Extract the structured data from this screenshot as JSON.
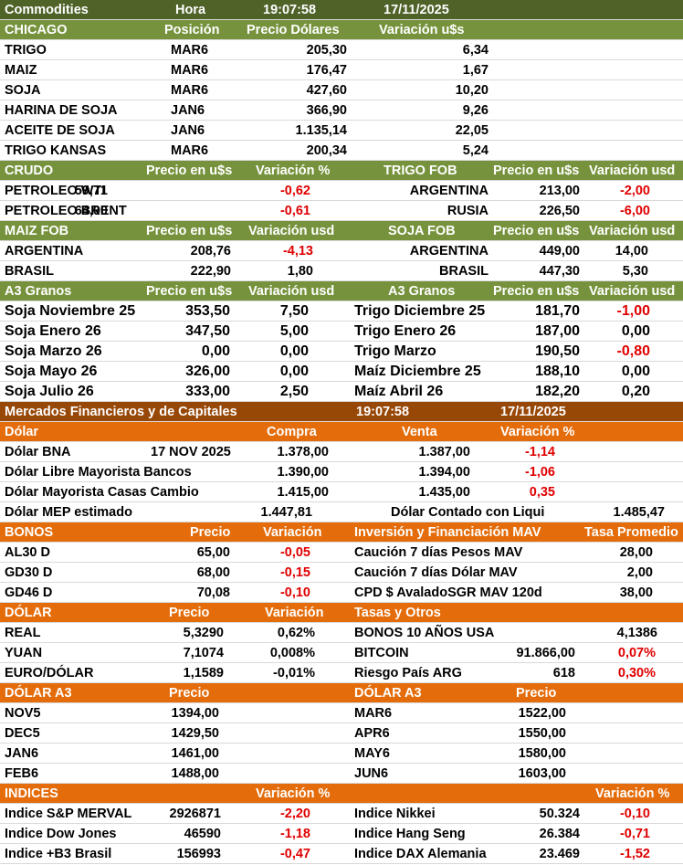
{
  "rows": [
    [
      "Commodities",
      "Hora",
      "19:07:58",
      "17/11/2025"
    ],
    [
      "CHICAGO",
      "Posición",
      "Precio Dólares",
      "Variación u$s"
    ],
    [
      "TRIGO",
      "MAR6",
      "205,30",
      "6,34"
    ],
    [
      "MAIZ",
      "MAR6",
      "176,47",
      "1,67"
    ],
    [
      "SOJA",
      "MAR6",
      "427,60",
      "10,20"
    ],
    [
      "HARINA DE SOJA",
      "JAN6",
      "366,90",
      "9,26"
    ],
    [
      "ACEITE DE SOJA",
      "JAN6",
      "1.135,14",
      "22,05"
    ],
    [
      "TRIGO KANSAS",
      "MAR6",
      "200,34",
      "5,24"
    ],
    [
      "CRUDO",
      "Precio en u$s",
      "Variación %",
      "TRIGO FOB",
      "Precio en u$s",
      "Variación usd"
    ],
    [
      "PETROLEO WTI",
      "59,71",
      "-0,62",
      "ARGENTINA",
      "213,00",
      "-2,00"
    ],
    [
      "PETROLEO BRENT",
      "64,00",
      "-0,61",
      "RUSIA",
      "226,50",
      "-6,00"
    ],
    [
      "MAIZ FOB",
      "Precio en u$s",
      "Variación usd",
      "SOJA FOB",
      "Precio en u$s",
      "Variación usd"
    ],
    [
      "ARGENTINA",
      "208,76",
      "-4,13",
      "ARGENTINA",
      "449,00",
      "14,00"
    ],
    [
      "BRASIL",
      "222,90",
      "1,80",
      "BRASIL",
      "447,30",
      "5,30"
    ],
    [
      "A3 Granos",
      "Precio en u$s",
      "Variación usd",
      "A3 Granos",
      "Precio en u$s",
      "Variación usd"
    ],
    [
      "Soja Noviembre 25",
      "353,50",
      "7,50",
      "Trigo Diciembre 25",
      "181,70",
      "-1,00"
    ],
    [
      "Soja Enero 26",
      "347,50",
      "5,00",
      "Trigo Enero 26",
      "187,00",
      "0,00"
    ],
    [
      "Soja Marzo 26",
      "0,00",
      "0,00",
      "Trigo Marzo",
      "190,50",
      "-0,80"
    ],
    [
      "Soja Mayo 26",
      "326,00",
      "0,00",
      "Maíz Diciembre 25",
      "188,10",
      "0,00"
    ],
    [
      "Soja Julio 26",
      "333,00",
      "2,50",
      "Maíz Abril 26",
      "182,20",
      "0,20"
    ],
    [
      "Mercados Financieros y de Capitales",
      "19:07:58",
      "17/11/2025"
    ],
    [
      "Dólar",
      "Compra",
      "Venta",
      "Variación %"
    ],
    [
      "Dólar BNA",
      "17 NOV 2025",
      "1.378,00",
      "1.387,00",
      "-1,14"
    ],
    [
      "Dólar Libre Mayorista Bancos",
      "1.390,00",
      "1.394,00",
      "-1,06"
    ],
    [
      "Dólar Mayorista Casas Cambio",
      "1.415,00",
      "1.435,00",
      "0,35"
    ],
    [
      "Dólar MEP estimado",
      "1.447,81",
      "Dólar Contado con Liqui",
      "1.485,47"
    ],
    [
      "BONOS",
      "Precio",
      "Variación",
      "Inversión y Financiación MAV",
      "Tasa Promedio"
    ],
    [
      "AL30 D",
      "65,00",
      "-0,05",
      "Caución 7 días Pesos MAV",
      "28,00"
    ],
    [
      "GD30 D",
      "68,00",
      "-0,15",
      "Caución 7 días Dólar MAV",
      "2,00"
    ],
    [
      "GD46 D",
      "70,08",
      "-0,10",
      "CPD $ AvaladoSGR  MAV 120d",
      "38,00"
    ],
    [
      "DÓLAR",
      "Precio",
      "Variación",
      "Tasas y Otros"
    ],
    [
      "REAL",
      "5,3290",
      "0,62%",
      "BONOS 10 AÑOS USA",
      "4,1386"
    ],
    [
      "YUAN",
      "7,1074",
      "0,008%",
      "BITCOIN",
      "91.866,00",
      "0,07%"
    ],
    [
      "EURO/DÓLAR",
      "1,1589",
      "-0,01%",
      "Riesgo País ARG",
      "618",
      "0,30%"
    ],
    [
      "DÓLAR A3",
      "Precio",
      "DÓLAR A3",
      "Precio"
    ],
    [
      "NOV5",
      "1394,00",
      "MAR6",
      "1522,00"
    ],
    [
      "DEC5",
      "1429,50",
      "APR6",
      "1550,00"
    ],
    [
      "JAN6",
      "1461,00",
      "MAY6",
      "1580,00"
    ],
    [
      "FEB6",
      "1488,00",
      "JUN6",
      "1603,00"
    ],
    [
      "INDICES",
      "Variación %",
      "Variación %"
    ],
    [
      "Indice S&P MERVAL",
      "2926871",
      "-2,20",
      "Indice Nikkei",
      "50.324",
      "-0,10"
    ],
    [
      "Indice Dow Jones",
      "46590",
      "-1,18",
      "Indice Hang Seng",
      "26.384",
      "-0,71"
    ],
    [
      "Indice +B3 Brasil",
      "156993",
      "-0,47",
      "Indice DAX Alemania",
      "23.469",
      "-1,52"
    ]
  ]
}
